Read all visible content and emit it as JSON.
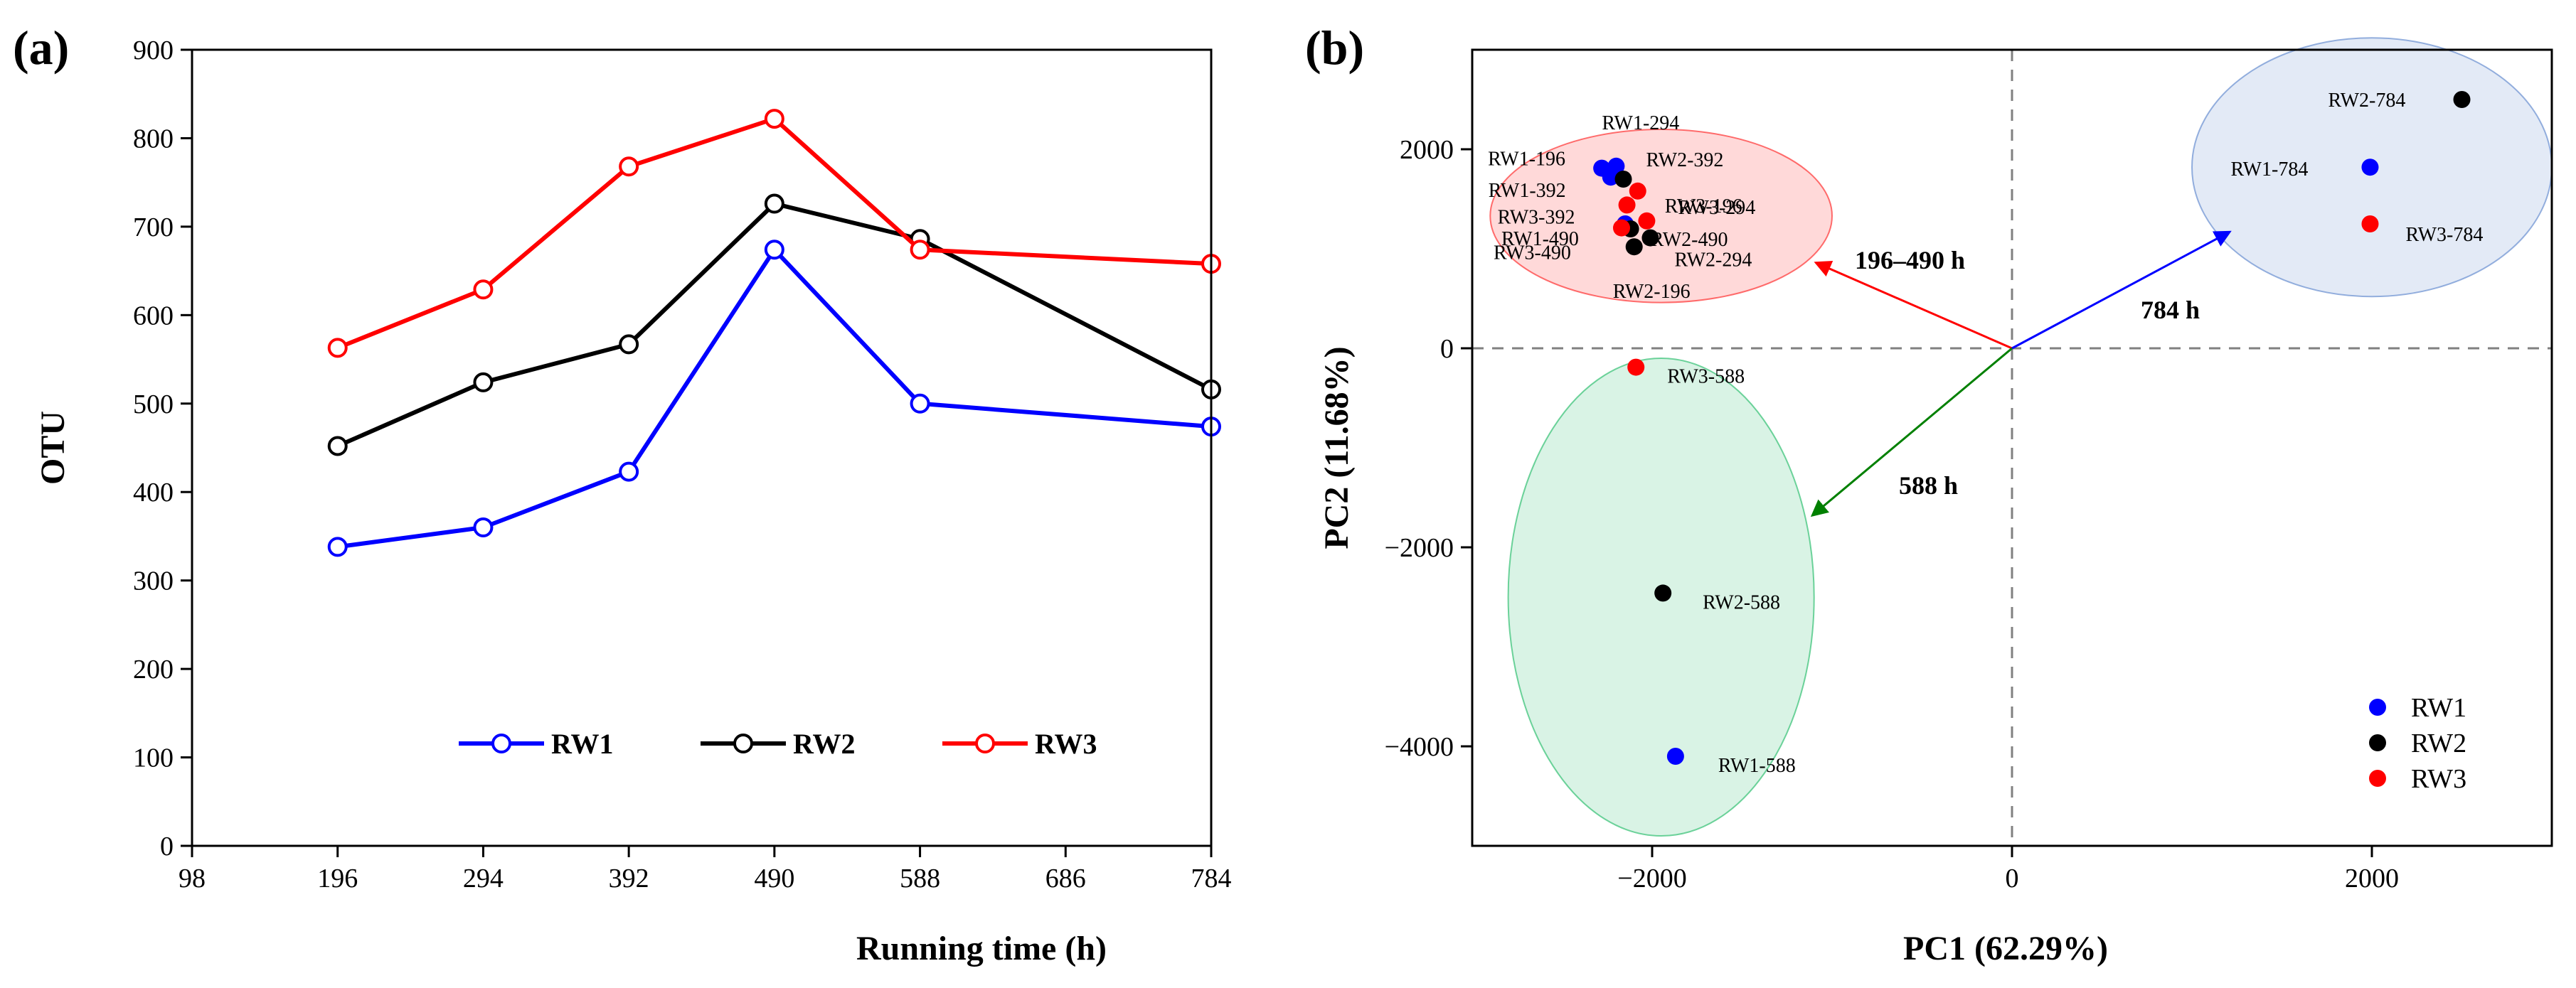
{
  "panel_a_label": "(a)",
  "panel_b_label": "(b)",
  "chart_data": [
    {
      "type": "line",
      "xlabel": "Running time (h)",
      "ylabel": "OTU",
      "xlim": [
        98,
        784
      ],
      "ylim": [
        0,
        900
      ],
      "xticks": [
        98,
        196,
        294,
        392,
        490,
        588,
        686,
        784
      ],
      "yticks": [
        0,
        100,
        200,
        300,
        400,
        500,
        600,
        700,
        800,
        900
      ],
      "x": [
        196,
        294,
        392,
        490,
        588,
        784
      ],
      "legend_position": "bottom",
      "series": [
        {
          "name": "RW1",
          "color": "#0000ff",
          "values": [
            338,
            360,
            423,
            674,
            500,
            474
          ]
        },
        {
          "name": "RW2",
          "color": "#000000",
          "values": [
            452,
            524,
            567,
            726,
            686,
            516
          ]
        },
        {
          "name": "RW3",
          "color": "#ff0000",
          "values": [
            563,
            629,
            768,
            822,
            674,
            658
          ]
        }
      ]
    },
    {
      "type": "scatter",
      "xlabel": "PC1 (62.29%)",
      "ylabel": "PC2 (11.68%)",
      "xlim": [
        -3000,
        3000
      ],
      "ylim": [
        -5000,
        3000
      ],
      "xticks": [
        -2000,
        0,
        2000
      ],
      "yticks": [
        -4000,
        -2000,
        0,
        2000
      ],
      "legend_position": "bottom-right",
      "series": [
        {
          "name": "RW1",
          "color": "#0000ff",
          "points": [
            {
              "label": "RW1-196",
              "x": -2280,
              "y": 1810
            },
            {
              "label": "RW1-294",
              "x": -2200,
              "y": 1830
            },
            {
              "label": "RW1-392",
              "x": -2230,
              "y": 1720
            },
            {
              "label": "RW1-490",
              "x": -2150,
              "y": 1250
            },
            {
              "label": "RW1-588",
              "x": -1870,
              "y": -4100
            },
            {
              "label": "RW1-784",
              "x": 1990,
              "y": 1820
            }
          ]
        },
        {
          "name": "RW2",
          "color": "#000000",
          "points": [
            {
              "label": "RW2-196",
              "x": -2100,
              "y": 1020
            },
            {
              "label": "RW2-294",
              "x": -2010,
              "y": 1110
            },
            {
              "label": "RW2-392",
              "x": -2160,
              "y": 1700
            },
            {
              "label": "RW2-490",
              "x": -2120,
              "y": 1200
            },
            {
              "label": "RW2-588",
              "x": -1940,
              "y": -2460
            },
            {
              "label": "RW2-784",
              "x": 2500,
              "y": 2500
            }
          ]
        },
        {
          "name": "RW3",
          "color": "#ff0000",
          "points": [
            {
              "label": "RW3-196",
              "x": -2080,
              "y": 1580
            },
            {
              "label": "RW3-294",
              "x": -2030,
              "y": 1280
            },
            {
              "label": "RW3-392",
              "x": -2140,
              "y": 1440
            },
            {
              "label": "RW3-490",
              "x": -2170,
              "y": 1210
            },
            {
              "label": "RW3-588",
              "x": -2090,
              "y": -190
            },
            {
              "label": "RW3-784",
              "x": 1990,
              "y": 1250
            }
          ]
        }
      ],
      "clusters": [
        {
          "name": "196-490",
          "color": "#ff0000",
          "cx": -1950,
          "cy": 1330,
          "rx": 950,
          "ry": 870
        },
        {
          "name": "588",
          "color": "#00b050",
          "cx": -1950,
          "cy": -2500,
          "rx": 850,
          "ry": 2400
        },
        {
          "name": "784",
          "color": "#4472c4",
          "cx": 2000,
          "cy": 1820,
          "rx": 1000,
          "ry": 1300
        }
      ],
      "arrows": [
        {
          "label": "196–490 h",
          "color": "#ff0000",
          "to": [
            -1090,
            860
          ]
        },
        {
          "label": "784 h",
          "color": "#0000ff",
          "to": [
            1210,
            1170
          ]
        },
        {
          "label": "588 h",
          "color": "#008000",
          "to": [
            -1110,
            -1680
          ]
        }
      ]
    }
  ]
}
